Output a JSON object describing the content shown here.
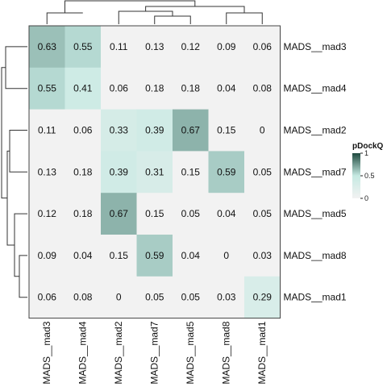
{
  "chart_data": {
    "type": "heatmap",
    "rows": [
      "MADS__mad3",
      "MADS__mad4",
      "MADS__mad2",
      "MADS__mad7",
      "MADS__mad5",
      "MADS__mad8",
      "MADS__mad1"
    ],
    "columns": [
      "MADS__mad3",
      "MADS__mad4",
      "MADS__mad2",
      "MADS__mad7",
      "MADS__mad5",
      "MADS__mad8",
      "MADS__mad1"
    ],
    "values": [
      [
        0.63,
        0.55,
        0.11,
        0.13,
        0.12,
        0.09,
        0.06
      ],
      [
        0.55,
        0.41,
        0.06,
        0.18,
        0.18,
        0.04,
        0.08
      ],
      [
        0.11,
        0.06,
        0.33,
        0.39,
        0.67,
        0.15,
        0
      ],
      [
        0.13,
        0.18,
        0.39,
        0.31,
        0.15,
        0.59,
        0.05
      ],
      [
        0.12,
        0.18,
        0.67,
        0.15,
        0.05,
        0.04,
        0.05
      ],
      [
        0.09,
        0.04,
        0.15,
        0.59,
        0.04,
        0,
        0.03
      ],
      [
        0.06,
        0.08,
        0,
        0.05,
        0.05,
        0.03,
        0.29
      ]
    ],
    "display_values": [
      [
        "0.63",
        "0.55",
        "0.11",
        "0.13",
        "0.12",
        "0.09",
        "0.06"
      ],
      [
        "0.55",
        "0.41",
        "0.06",
        "0.18",
        "0.18",
        "0.04",
        "0.08"
      ],
      [
        "0.11",
        "0.06",
        "0.33",
        "0.39",
        "0.67",
        "0.15",
        "0"
      ],
      [
        "0.13",
        "0.18",
        "0.39",
        "0.31",
        "0.15",
        "0.59",
        "0.05"
      ],
      [
        "0.12",
        "0.18",
        "0.67",
        "0.15",
        "0.05",
        "0.04",
        "0.05"
      ],
      [
        "0.09",
        "0.04",
        "0.15",
        "0.59",
        "0.04",
        "0",
        "0.03"
      ],
      [
        "0.06",
        "0.08",
        "0",
        "0.05",
        "0.05",
        "0.03",
        "0.29"
      ]
    ],
    "threshold": 0.25,
    "below_threshold_color": "#f2f2f2",
    "color_scale": {
      "low": "#f2f2f2",
      "mid": "#c6e9e2",
      "high": "#1f4a3f"
    },
    "legend": {
      "title": "pDockQ",
      "ticks": [
        "1",
        "0.5",
        "0"
      ],
      "tick_values": [
        1,
        0.5,
        0
      ],
      "position": "right"
    },
    "dendrogram_rows": true,
    "dendrogram_columns": true
  }
}
